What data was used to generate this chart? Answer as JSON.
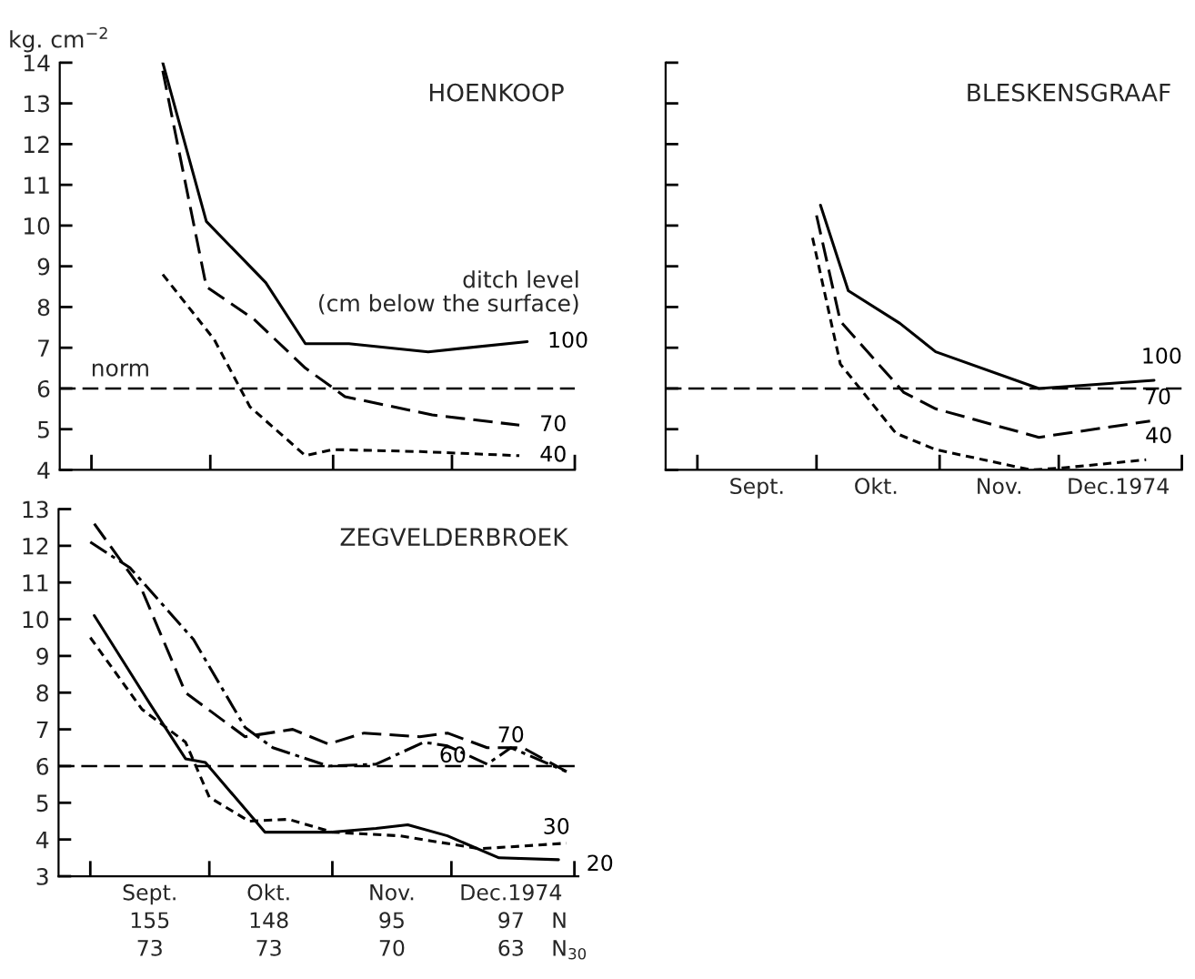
{
  "chart_data": [
    {
      "type": "line",
      "title": "HOENKOOP",
      "ylabel": "kg. cm$^{−2}$",
      "annotations": [
        "ditch level\n(cm below the surface)"
      ],
      "xlim": [
        "1974-08-24",
        "1975-01-01"
      ],
      "ylim": [
        4,
        14
      ],
      "xticks": [
        {
          "value": "1974-09-01",
          "label": null
        },
        {
          "value": "1974-10-01",
          "label": null
        },
        {
          "value": "1974-11-01",
          "label": null
        },
        {
          "value": "1974-12-01",
          "label": null
        },
        {
          "value": "1975-01-01",
          "label": null
        }
      ],
      "yticks": [
        4,
        5,
        6,
        7,
        8,
        9,
        10,
        11,
        12,
        13,
        14
      ],
      "tick_labels": "y",
      "ref_lines": [
        {
          "axis": "y",
          "value": 6,
          "label": "norm",
          "color": "#000000",
          "line_style": "dashed"
        }
      ],
      "series": [
        {
          "name": "100",
          "color": "#000000",
          "line_style": "solid",
          "x": [
            "1974-09-19",
            "1974-09-30",
            "1974-10-15",
            "1974-10-25",
            "1974-11-05",
            "1974-11-25",
            "1974-12-20"
          ],
          "values": [
            14.0,
            10.1,
            8.6,
            7.1,
            7.1,
            6.9,
            7.15
          ]
        },
        {
          "name": "70",
          "color": "#000000",
          "line_style": "dashed",
          "x": [
            "1974-09-19",
            "1974-09-30",
            "1974-10-12",
            "1974-10-25",
            "1974-11-04",
            "1974-11-26",
            "1974-12-18"
          ],
          "values": [
            13.8,
            8.5,
            7.7,
            6.5,
            5.8,
            5.35,
            5.1
          ]
        },
        {
          "name": "40",
          "color": "#000000",
          "line_style": "dotted",
          "x": [
            "1974-09-19",
            "1974-10-02",
            "1974-10-11",
            "1974-10-25",
            "1974-11-01",
            "1974-11-23",
            "1974-12-18"
          ],
          "values": [
            8.8,
            7.2,
            5.55,
            4.35,
            4.5,
            4.45,
            4.35
          ]
        }
      ]
    },
    {
      "type": "line",
      "title": "BLESKENSGRAAF",
      "xlim": [
        "1974-08-24",
        "1975-01-01"
      ],
      "ylim": [
        4,
        14
      ],
      "xticks": [
        {
          "value": "1974-09-01",
          "label": null
        },
        {
          "value": "1974-10-01",
          "label": null
        },
        {
          "value": "1974-11-01",
          "label": null
        },
        {
          "value": "1974-12-01",
          "label": null
        },
        {
          "value": "1975-01-01",
          "label": null
        },
        {
          "value": "1974-09-16",
          "label": "Sept."
        },
        {
          "value": "1974-10-16",
          "label": "Okt."
        },
        {
          "value": "1974-11-16",
          "label": "Nov."
        },
        {
          "value": "1974-12-16",
          "label": "Dec.1974"
        }
      ],
      "yticks": [
        4,
        5,
        6,
        7,
        8,
        9,
        10,
        11,
        12,
        13,
        14
      ],
      "tick_labels": "x",
      "ref_lines": [
        {
          "axis": "y",
          "value": 6,
          "color": "#000000",
          "line_style": "dashed"
        }
      ],
      "series": [
        {
          "name": "100",
          "color": "#000000",
          "line_style": "solid",
          "x": [
            "1974-10-02",
            "1974-10-09",
            "1974-10-22",
            "1974-10-31",
            "1974-11-26",
            "1974-12-25"
          ],
          "values": [
            10.5,
            8.4,
            7.6,
            6.9,
            6.0,
            6.2
          ]
        },
        {
          "name": "70",
          "color": "#000000",
          "line_style": "dashed",
          "x": [
            "1974-10-01",
            "1974-10-07",
            "1974-10-23",
            "1974-10-31",
            "1974-11-26",
            "1974-12-24"
          ],
          "values": [
            10.25,
            7.65,
            5.9,
            5.5,
            4.8,
            5.2
          ]
        },
        {
          "name": "40",
          "color": "#000000",
          "line_style": "dotted",
          "x": [
            "1974-09-30",
            "1974-10-07",
            "1974-10-21",
            "1974-10-31",
            "1974-11-24",
            "1974-12-02",
            "1974-12-23"
          ],
          "values": [
            9.7,
            6.6,
            4.9,
            4.5,
            4.0,
            4.05,
            4.25
          ]
        }
      ]
    },
    {
      "type": "line",
      "title": "ZEGVELDERBROEK",
      "annotations": [
        "155",
        "148",
        "95",
        "97",
        "N",
        "73",
        "73",
        "70",
        "63",
        "N$_{30}$"
      ],
      "xlim": [
        "1974-08-24",
        "1975-01-02"
      ],
      "ylim": [
        3,
        13
      ],
      "xticks": [
        {
          "value": "1974-09-01",
          "label": null
        },
        {
          "value": "1974-10-01",
          "label": null
        },
        {
          "value": "1974-11-01",
          "label": null
        },
        {
          "value": "1974-12-01",
          "label": null
        },
        {
          "value": "1975-01-01",
          "label": null
        },
        {
          "value": "1974-09-16",
          "label": "Sept."
        },
        {
          "value": "1974-10-16",
          "label": "Okt."
        },
        {
          "value": "1974-11-16",
          "label": "Nov."
        },
        {
          "value": "1974-12-16",
          "label": "Dec.1974"
        }
      ],
      "yticks": [
        3,
        4,
        5,
        6,
        7,
        8,
        9,
        10,
        11,
        12,
        13
      ],
      "ref_lines": [
        {
          "axis": "y",
          "value": 6,
          "color": "#000000",
          "line_style": "dashed"
        }
      ],
      "series": [
        {
          "name": "70",
          "color": "#000000",
          "line_style": "dashed",
          "x": [
            "1974-09-02",
            "1974-09-14",
            "1974-09-25",
            "1974-10-10",
            "1974-10-22",
            "1974-10-31",
            "1974-11-09",
            "1974-11-23",
            "1974-11-30",
            "1974-12-10",
            "1974-12-19",
            "1974-12-30"
          ],
          "values": [
            12.6,
            10.8,
            8.0,
            6.8,
            7.0,
            6.6,
            6.9,
            6.8,
            6.9,
            6.5,
            6.5,
            5.85
          ]
        },
        {
          "name": "60",
          "color": "#000000",
          "line_style": "dashdot",
          "x": [
            "1974-09-01",
            "1974-09-11",
            "1974-09-27",
            "1974-10-10",
            "1974-10-17",
            "1974-10-31",
            "1974-11-12",
            "1974-11-24",
            "1974-11-30",
            "1974-12-10",
            "1974-12-16",
            "1974-12-30"
          ],
          "values": [
            12.1,
            11.4,
            9.45,
            7.05,
            6.5,
            6.0,
            6.05,
            6.65,
            6.55,
            6.05,
            6.5,
            5.85
          ]
        },
        {
          "name": "30",
          "color": "#000000",
          "line_style": "dotted",
          "x": [
            "1974-09-01",
            "1974-09-14",
            "1974-09-25",
            "1974-10-01",
            "1974-10-11",
            "1974-10-21",
            "1974-11-01",
            "1974-11-18",
            "1974-12-08",
            "1974-12-16",
            "1974-12-30"
          ],
          "values": [
            9.5,
            7.55,
            6.65,
            5.15,
            4.5,
            4.55,
            4.2,
            4.1,
            3.75,
            3.8,
            3.9
          ]
        },
        {
          "name": "20",
          "color": "#000000",
          "line_style": "solid",
          "x": [
            "1974-09-02",
            "1974-09-16",
            "1974-09-25",
            "1974-09-30",
            "1974-10-15",
            "1974-11-01",
            "1974-11-12",
            "1974-11-20",
            "1974-11-30",
            "1974-12-13",
            "1974-12-28"
          ],
          "values": [
            10.1,
            7.7,
            6.2,
            6.1,
            4.2,
            4.2,
            4.3,
            4.4,
            4.1,
            3.5,
            3.45
          ]
        }
      ]
    }
  ]
}
